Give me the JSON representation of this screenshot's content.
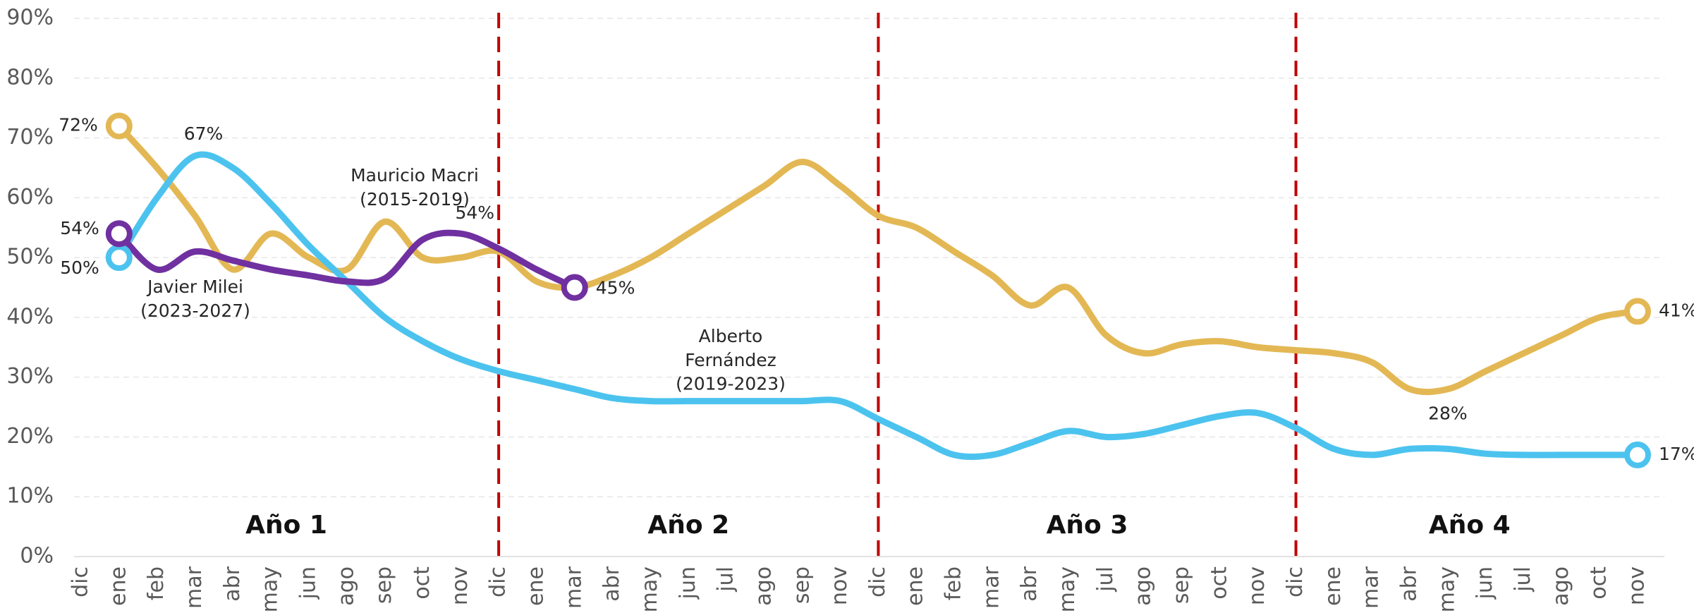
{
  "chart_data": {
    "type": "line",
    "categories": [
      "dic",
      "ene",
      "feb",
      "mar",
      "abr",
      "may",
      "jun",
      "ago",
      "sep",
      "oct",
      "nov",
      "dic",
      "ene",
      "mar",
      "abr",
      "may",
      "jun",
      "jul",
      "ago",
      "sep",
      "nov",
      "dic",
      "ene",
      "feb",
      "mar",
      "abr",
      "may",
      "jul",
      "ago",
      "sep",
      "oct",
      "nov",
      "dic",
      "ene",
      "mar",
      "abr",
      "may",
      "jun",
      "jul",
      "ago",
      "oct",
      "nov"
    ],
    "series": [
      {
        "name": "Mauricio Macri\n(2015-2019)",
        "color": "#e3b854",
        "values": [
          null,
          72,
          65,
          57,
          48,
          54,
          50,
          48,
          56,
          50,
          50,
          51,
          46,
          45,
          47,
          50,
          54,
          58,
          62,
          66,
          62,
          57,
          55,
          51,
          47,
          42,
          45,
          37,
          34,
          35.5,
          36,
          35,
          34.5,
          34,
          32.5,
          28,
          28,
          31,
          34,
          37,
          40,
          41
        ],
        "value_labels": [
          null,
          "72%",
          null,
          null,
          null,
          null,
          null,
          null,
          null,
          null,
          null,
          null,
          null,
          null,
          null,
          null,
          null,
          null,
          null,
          null,
          null,
          null,
          null,
          null,
          null,
          null,
          null,
          null,
          null,
          null,
          null,
          null,
          null,
          null,
          null,
          null,
          "28%",
          null,
          null,
          null,
          null,
          "41%"
        ]
      },
      {
        "name": "Alberto\nFernández\n(2019-2023)",
        "color": "#4cc3ee",
        "values": [
          null,
          50,
          60,
          67,
          65,
          59,
          52,
          46,
          40,
          36,
          33,
          31,
          29.5,
          28,
          26.5,
          26,
          26,
          26,
          26,
          26,
          26,
          23,
          20,
          17,
          17,
          19,
          21,
          20,
          20.5,
          22,
          23.5,
          24,
          21.5,
          18,
          17,
          18,
          18,
          17.2,
          17,
          17,
          17,
          17
        ],
        "value_labels": [
          null,
          "50%",
          null,
          "67%",
          null,
          null,
          null,
          null,
          null,
          null,
          null,
          null,
          null,
          null,
          null,
          null,
          null,
          null,
          null,
          null,
          null,
          null,
          null,
          null,
          null,
          null,
          null,
          null,
          null,
          null,
          null,
          null,
          null,
          null,
          null,
          null,
          null,
          null,
          null,
          null,
          null,
          "17%"
        ]
      },
      {
        "name": "Javier Milei\n(2023-2027)",
        "color": "#7030a0",
        "values": [
          null,
          54,
          48,
          51,
          49.5,
          48,
          47,
          46,
          46.5,
          53,
          54,
          51.5,
          48,
          45,
          null,
          null,
          null,
          null,
          null,
          null,
          null,
          null,
          null,
          null,
          null,
          null,
          null,
          null,
          null,
          null,
          null,
          null,
          null,
          null,
          null,
          null,
          null,
          null,
          null,
          null,
          null,
          null
        ],
        "value_labels": [
          null,
          "54%",
          null,
          null,
          null,
          null,
          null,
          null,
          null,
          null,
          "54%",
          null,
          null,
          "45%",
          null,
          null,
          null,
          null,
          null,
          null,
          null,
          null,
          null,
          null,
          null,
          null,
          null,
          null,
          null,
          null,
          null,
          null,
          null,
          null,
          null,
          null,
          null,
          null,
          null,
          null,
          null,
          null
        ]
      }
    ],
    "annotations": [
      "Año 1",
      "Año 2",
      "Año 3",
      "Año 4"
    ],
    "ylim": [
      0,
      90
    ],
    "yticks": [
      {
        "value": 0,
        "label": "0%"
      },
      {
        "value": 10,
        "label": "10%"
      },
      {
        "value": 20,
        "label": "20%"
      },
      {
        "value": 30,
        "label": "30%"
      },
      {
        "value": 40,
        "label": "40%"
      },
      {
        "value": 50,
        "label": "50%"
      },
      {
        "value": 60,
        "label": "60%"
      },
      {
        "value": 70,
        "label": "70%"
      },
      {
        "value": 80,
        "label": "80%"
      },
      {
        "value": 90,
        "label": "90%"
      }
    ],
    "grid": true,
    "divider_color": "#c00000"
  }
}
